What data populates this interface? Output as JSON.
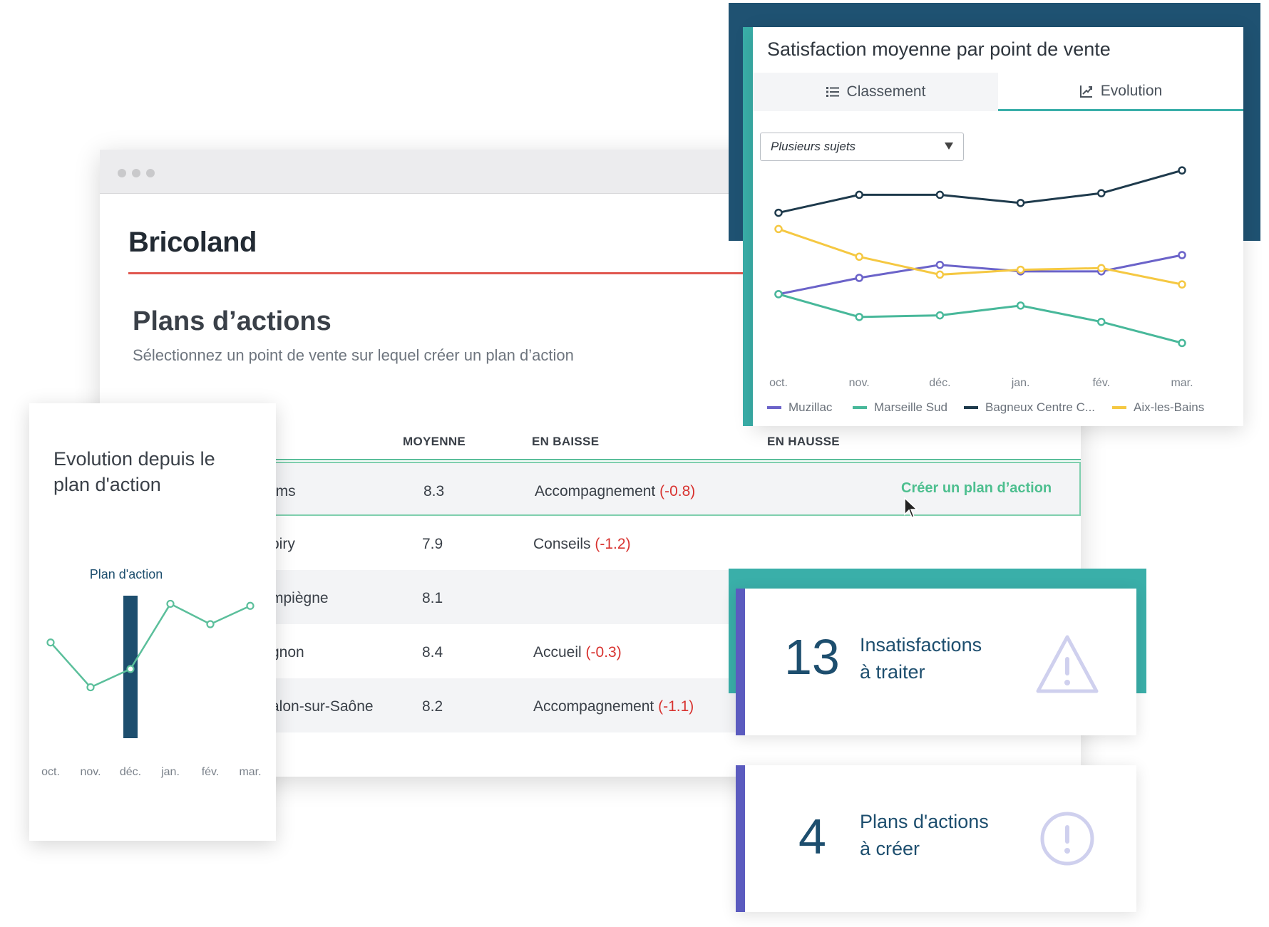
{
  "brand": {
    "name": "Bricoland"
  },
  "page": {
    "title": "Plans d’actions",
    "subtitle": "Sélectionnez un point de vente sur lequel créer un plan d’action"
  },
  "table": {
    "columns": [
      "MOYENNE",
      "EN BAISSE",
      "EN HAUSSE"
    ],
    "action_label": "Créer un plan d’action",
    "rows": [
      {
        "store": "ims",
        "average": "8.3",
        "down_topic": "Accompagnement",
        "down_delta": "(-0.8)"
      },
      {
        "store": "oiry",
        "average": "7.9",
        "down_topic": "Conseils",
        "down_delta": "(-1.2)"
      },
      {
        "store": "mpiègne",
        "average": "8.1",
        "down_topic": "",
        "down_delta": ""
      },
      {
        "store": "gnon",
        "average": "8.4",
        "down_topic": "Accueil",
        "down_delta": "(-0.3)"
      },
      {
        "store": "alon-sur-Saône",
        "average": "8.2",
        "down_topic": "Accompagnement",
        "down_delta": "(-1.1)"
      }
    ]
  },
  "evolution_card": {
    "title": "Evolution depuis le plan d'action",
    "marker_label": "Plan d'action"
  },
  "satisfaction_panel": {
    "title": "Satisfaction moyenne par point de vente",
    "tabs": [
      {
        "label": "Classement",
        "icon": "list-icon"
      },
      {
        "label": "Evolution",
        "icon": "line-chart-icon",
        "active": true
      }
    ],
    "select_value": "Plusieurs sujets"
  },
  "kpis": [
    {
      "value": "13",
      "label_line1": "Insatisfactions",
      "label_line2": "à traiter",
      "icon": "warning-triangle-icon"
    },
    {
      "value": "4",
      "label_line1": "Plans d'actions",
      "label_line2": "à créer",
      "icon": "exclamation-circle-icon"
    }
  ],
  "colors": {
    "teal": "#3aafa9",
    "navy": "#1f5272",
    "purple": "#5b5bbf",
    "green": "#5bbf9b",
    "red": "#d8322f",
    "brand_red": "#e0574f"
  },
  "chart_data": [
    {
      "type": "line",
      "categories": [
        "oct.",
        "nov.",
        "déc.",
        "jan.",
        "fév.",
        "mar."
      ],
      "series": [
        {
          "name": "Muzillac",
          "color": "#6b63c9",
          "values": [
            5.8,
            6.3,
            6.7,
            6.5,
            6.5,
            7.0
          ]
        },
        {
          "name": "Marseille Sud",
          "color": "#48b89a",
          "values": [
            5.8,
            5.1,
            5.15,
            5.45,
            4.95,
            4.3
          ]
        },
        {
          "name": "Bagneux Centre C...",
          "color": "#1e3a4c",
          "values": [
            8.3,
            8.85,
            8.85,
            8.6,
            8.9,
            9.6
          ]
        },
        {
          "name": "Aix-les-Bains",
          "color": "#f5c842",
          "values": [
            7.8,
            6.95,
            6.4,
            6.55,
            6.6,
            6.1
          ]
        }
      ],
      "title": "Satisfaction moyenne par point de vente",
      "ylim": [
        3.5,
        10.5
      ],
      "grid": false,
      "legend": "bottom"
    },
    {
      "type": "line",
      "categories": [
        "oct.",
        "nov.",
        "déc.",
        "jan.",
        "fév.",
        "mar."
      ],
      "series": [
        {
          "color": "#5bbf9b",
          "values": [
            7.0,
            4.8,
            5.7,
            8.9,
            7.9,
            8.8
          ]
        }
      ],
      "marker": {
        "category": "déc.",
        "label": "Plan d'action"
      },
      "title": "Evolution depuis le plan d'action",
      "ylim": [
        3,
        10
      ],
      "grid": false
    }
  ]
}
